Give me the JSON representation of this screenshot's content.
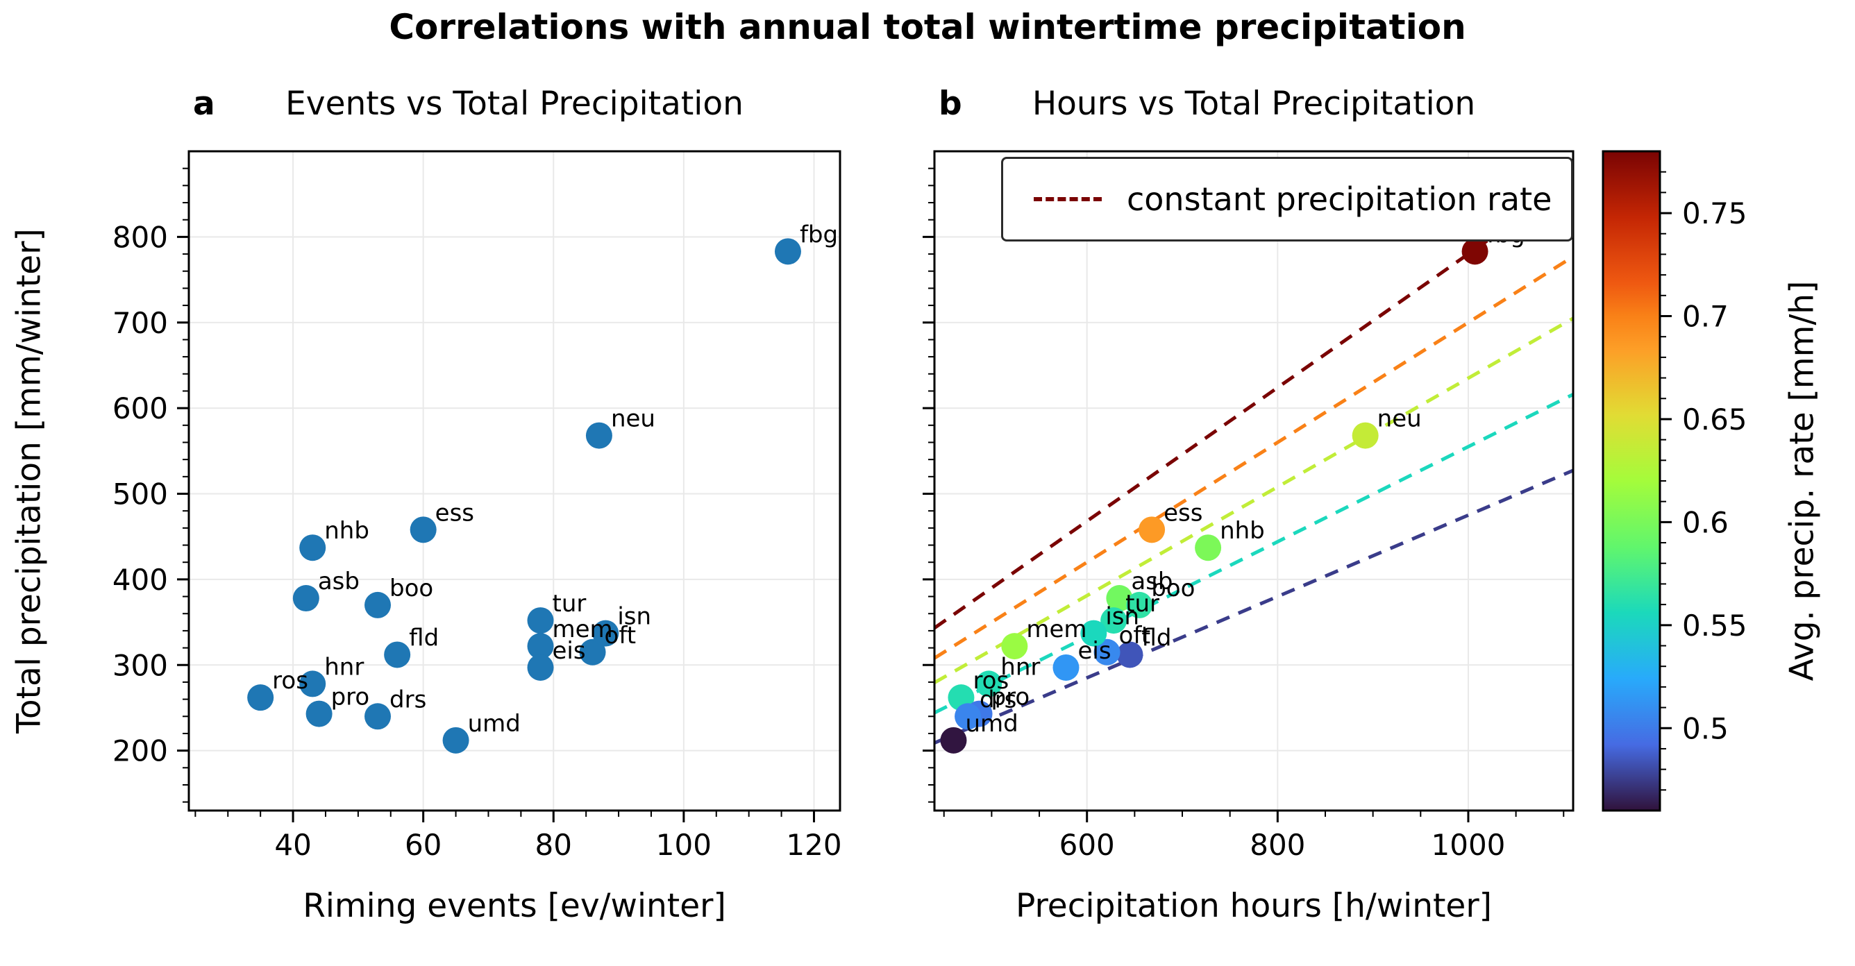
{
  "figure": {
    "title": "Correlations with annual total wintertime precipitation"
  },
  "panel_a": {
    "letter": "a",
    "title": "Events vs Total Precipitation",
    "xlabel": "Riming events [ev/winter]",
    "ylabel": "Total precipitation [mm/winter]"
  },
  "panel_b": {
    "letter": "b",
    "title": "Hours vs Total Precipitation",
    "xlabel": "Precipitation hours [h/winter]",
    "legend_label": "constant precipitation rate",
    "legend_line_color": "#7a0403"
  },
  "colorbar": {
    "label": "Avg. precip. rate [mm/h]",
    "ticks": [
      0.5,
      0.55,
      0.6,
      0.65,
      0.7,
      0.75
    ],
    "vmin": 0.46,
    "vmax": 0.78,
    "colormap": "turbo"
  },
  "chart_data": {
    "type": "scatter",
    "label_color": "#a3a3a3",
    "stations": [
      {
        "code": "ros",
        "events": 35,
        "hours": 468,
        "total": 262,
        "rate": 0.56
      },
      {
        "code": "hnr",
        "events": 43,
        "hours": 497,
        "total": 278,
        "rate": 0.559
      },
      {
        "code": "pro",
        "events": 44,
        "hours": 487,
        "total": 243,
        "rate": 0.499
      },
      {
        "code": "nhb",
        "events": 43,
        "hours": 727,
        "total": 437,
        "rate": 0.601
      },
      {
        "code": "asb",
        "events": 42,
        "hours": 634,
        "total": 378,
        "rate": 0.596
      },
      {
        "code": "boo",
        "events": 53,
        "hours": 655,
        "total": 370,
        "rate": 0.565
      },
      {
        "code": "drs",
        "events": 53,
        "hours": 475,
        "total": 240,
        "rate": 0.505
      },
      {
        "code": "fld",
        "events": 56,
        "hours": 645,
        "total": 312,
        "rate": 0.484
      },
      {
        "code": "ess",
        "events": 60,
        "hours": 668,
        "total": 458,
        "rate": 0.686
      },
      {
        "code": "umd",
        "events": 65,
        "hours": 460,
        "total": 212,
        "rate": 0.461
      },
      {
        "code": "tur",
        "events": 78,
        "hours": 628,
        "total": 352,
        "rate": 0.561
      },
      {
        "code": "mem",
        "events": 78,
        "hours": 524,
        "total": 322,
        "rate": 0.615
      },
      {
        "code": "eis",
        "events": 78,
        "hours": 578,
        "total": 297,
        "rate": 0.514
      },
      {
        "code": "oft",
        "events": 86,
        "hours": 621,
        "total": 315,
        "rate": 0.507
      },
      {
        "code": "isn",
        "events": 88,
        "hours": 607,
        "total": 337,
        "rate": 0.555
      },
      {
        "code": "neu",
        "events": 87,
        "hours": 892,
        "total": 568,
        "rate": 0.637
      },
      {
        "code": "fbg",
        "events": 116,
        "hours": 1007,
        "total": 783,
        "rate": 0.778
      }
    ],
    "panel_a": {
      "x_field": "events",
      "y_field": "total",
      "xlim": [
        24,
        124
      ],
      "ylim": [
        130,
        900
      ],
      "xticks": [
        40,
        60,
        80,
        100,
        120
      ],
      "yticks": [
        200,
        300,
        400,
        500,
        600,
        700,
        800
      ],
      "marker_color": "#1f77b4"
    },
    "panel_b": {
      "x_field": "hours",
      "y_field": "total",
      "color_field": "rate",
      "xlim": [
        440,
        1110
      ],
      "ylim": [
        130,
        900
      ],
      "xticks": [
        600,
        800,
        1000
      ],
      "yticks": [
        200,
        300,
        400,
        500,
        600,
        700,
        800
      ],
      "rate_lines": [
        0.78,
        0.7,
        0.635,
        0.555,
        0.475
      ]
    }
  }
}
